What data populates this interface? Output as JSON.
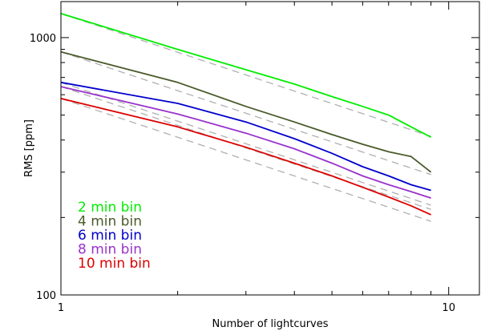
{
  "chart_data": {
    "type": "line",
    "title": "",
    "xlabel": "Number of lightcurves",
    "ylabel": "RMS [ppm]",
    "x_scale": "log",
    "y_scale": "log",
    "xlim": [
      1,
      12
    ],
    "ylim": [
      100,
      1380
    ],
    "x_ticks": [
      1,
      10
    ],
    "x_tick_labels": [
      "1",
      "10"
    ],
    "y_ticks": [
      100,
      1000
    ],
    "y_tick_labels": [
      "100",
      "1000"
    ],
    "x": [
      1,
      2,
      3,
      4,
      5,
      6,
      7,
      8,
      9
    ],
    "series": [
      {
        "name": "2 min bin",
        "color": "#00ee00",
        "values": [
          1240,
          900,
          750,
          660,
          590,
          540,
          500,
          450,
          410
        ]
      },
      {
        "name": "4 min bin",
        "color": "#4a5a2a",
        "values": [
          880,
          670,
          540,
          470,
          420,
          385,
          360,
          345,
          300
        ]
      },
      {
        "name": "6 min bin",
        "color": "#0000cc",
        "values": [
          670,
          555,
          470,
          405,
          355,
          315,
          290,
          268,
          255
        ]
      },
      {
        "name": "8 min bin",
        "color": "#9933cc",
        "values": [
          645,
          505,
          425,
          370,
          325,
          290,
          268,
          252,
          238
        ]
      },
      {
        "name": "10 min bin",
        "color": "#dd0000",
        "values": [
          580,
          450,
          375,
          325,
          290,
          262,
          240,
          222,
          205
        ]
      }
    ],
    "reference_lines": {
      "style": "dashed",
      "color": "#b0b0b0",
      "description": "1/sqrt(N) scaling",
      "start_values": [
        1240,
        880,
        670,
        645,
        580
      ]
    },
    "legend_position": "bottom-left",
    "grid": false
  }
}
